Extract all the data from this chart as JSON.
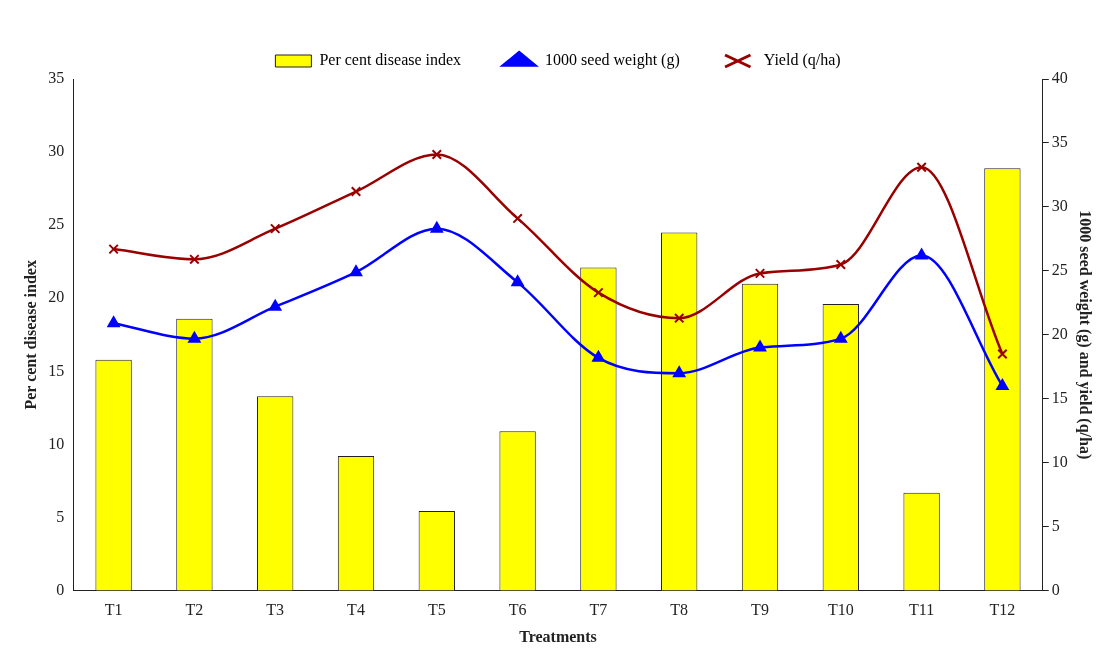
{
  "chart_data": {
    "type": "bar",
    "categories": [
      "T1",
      "T2",
      "T3",
      "T4",
      "T5",
      "T6",
      "T7",
      "T8",
      "T9",
      "T10",
      "T11",
      "T12"
    ],
    "series": [
      {
        "name": "Per cent disease index",
        "color": "#ffff00",
        "values": [
          15.8,
          18.6,
          13.3,
          9.2,
          5.45,
          10.9,
          22.1,
          24.5,
          21.0,
          19.6,
          6.7,
          28.9
        ]
      },
      {
        "name": "1000 seed weight (g)",
        "type": "line",
        "axis": "y2",
        "color": "#0000ff",
        "marker": "triangle",
        "values": [
          20.9,
          19.7,
          22.2,
          24.9,
          28.3,
          24.1,
          18.2,
          17.0,
          19.0,
          19.7,
          26.2,
          16.0
        ]
      },
      {
        "name": "Yield (q/ha)",
        "type": "line",
        "axis": "y2",
        "color": "#990000",
        "marker": "cross",
        "values": [
          26.7,
          25.9,
          28.3,
          31.2,
          34.1,
          29.1,
          23.3,
          21.3,
          24.8,
          25.5,
          33.1,
          18.5
        ]
      }
    ],
    "xlabel": "Treatments",
    "ylabel": "Per cent disease index",
    "y2label": "1000 seed weight (g) and yield (q/ha)",
    "ylim": [
      0,
      35
    ],
    "yticks": [
      0,
      5,
      10,
      15,
      20,
      25,
      30,
      35
    ],
    "y2lim": [
      0,
      40
    ],
    "y2ticks": [
      0,
      5,
      10,
      15,
      20,
      25,
      30,
      35,
      40
    ],
    "grid": false,
    "legend": "top"
  }
}
